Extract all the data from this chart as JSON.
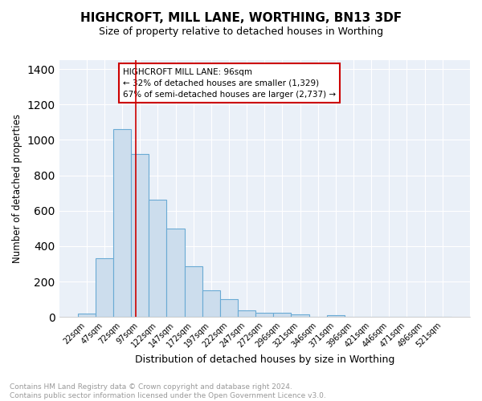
{
  "title": "HIGHCROFT, MILL LANE, WORTHING, BN13 3DF",
  "subtitle": "Size of property relative to detached houses in Worthing",
  "xlabel": "Distribution of detached houses by size in Worthing",
  "ylabel": "Number of detached properties",
  "bar_labels": [
    "22sqm",
    "47sqm",
    "72sqm",
    "97sqm",
    "122sqm",
    "147sqm",
    "172sqm",
    "197sqm",
    "222sqm",
    "247sqm",
    "272sqm",
    "296sqm",
    "321sqm",
    "346sqm",
    "371sqm",
    "396sqm",
    "421sqm",
    "446sqm",
    "471sqm",
    "496sqm",
    "521sqm"
  ],
  "bar_values": [
    20,
    330,
    1060,
    920,
    660,
    500,
    285,
    150,
    100,
    35,
    22,
    22,
    15,
    0,
    10,
    0,
    0,
    0,
    0,
    0,
    0
  ],
  "bar_color": "#ccdded",
  "bar_edge_color": "#6aaad4",
  "ylim": [
    0,
    1450
  ],
  "yticks": [
    0,
    200,
    400,
    600,
    800,
    1000,
    1200,
    1400
  ],
  "red_line_x": 2.76,
  "annotation_text": "HIGHCROFT MILL LANE: 96sqm\n← 32% of detached houses are smaller (1,329)\n67% of semi-detached houses are larger (2,737) →",
  "annotation_box_color": "#ffffff",
  "annotation_box_edge_color": "#cc0000",
  "footer_text": "Contains HM Land Registry data © Crown copyright and database right 2024.\nContains public sector information licensed under the Open Government Licence v3.0.",
  "background_color": "#ffffff",
  "plot_background_color": "#eaf0f8",
  "grid_color": "#ffffff",
  "title_fontsize": 11,
  "subtitle_fontsize": 9,
  "ylabel_fontsize": 8.5,
  "xlabel_fontsize": 9,
  "tick_fontsize": 7,
  "annotation_fontsize": 7.5,
  "footer_fontsize": 6.5
}
